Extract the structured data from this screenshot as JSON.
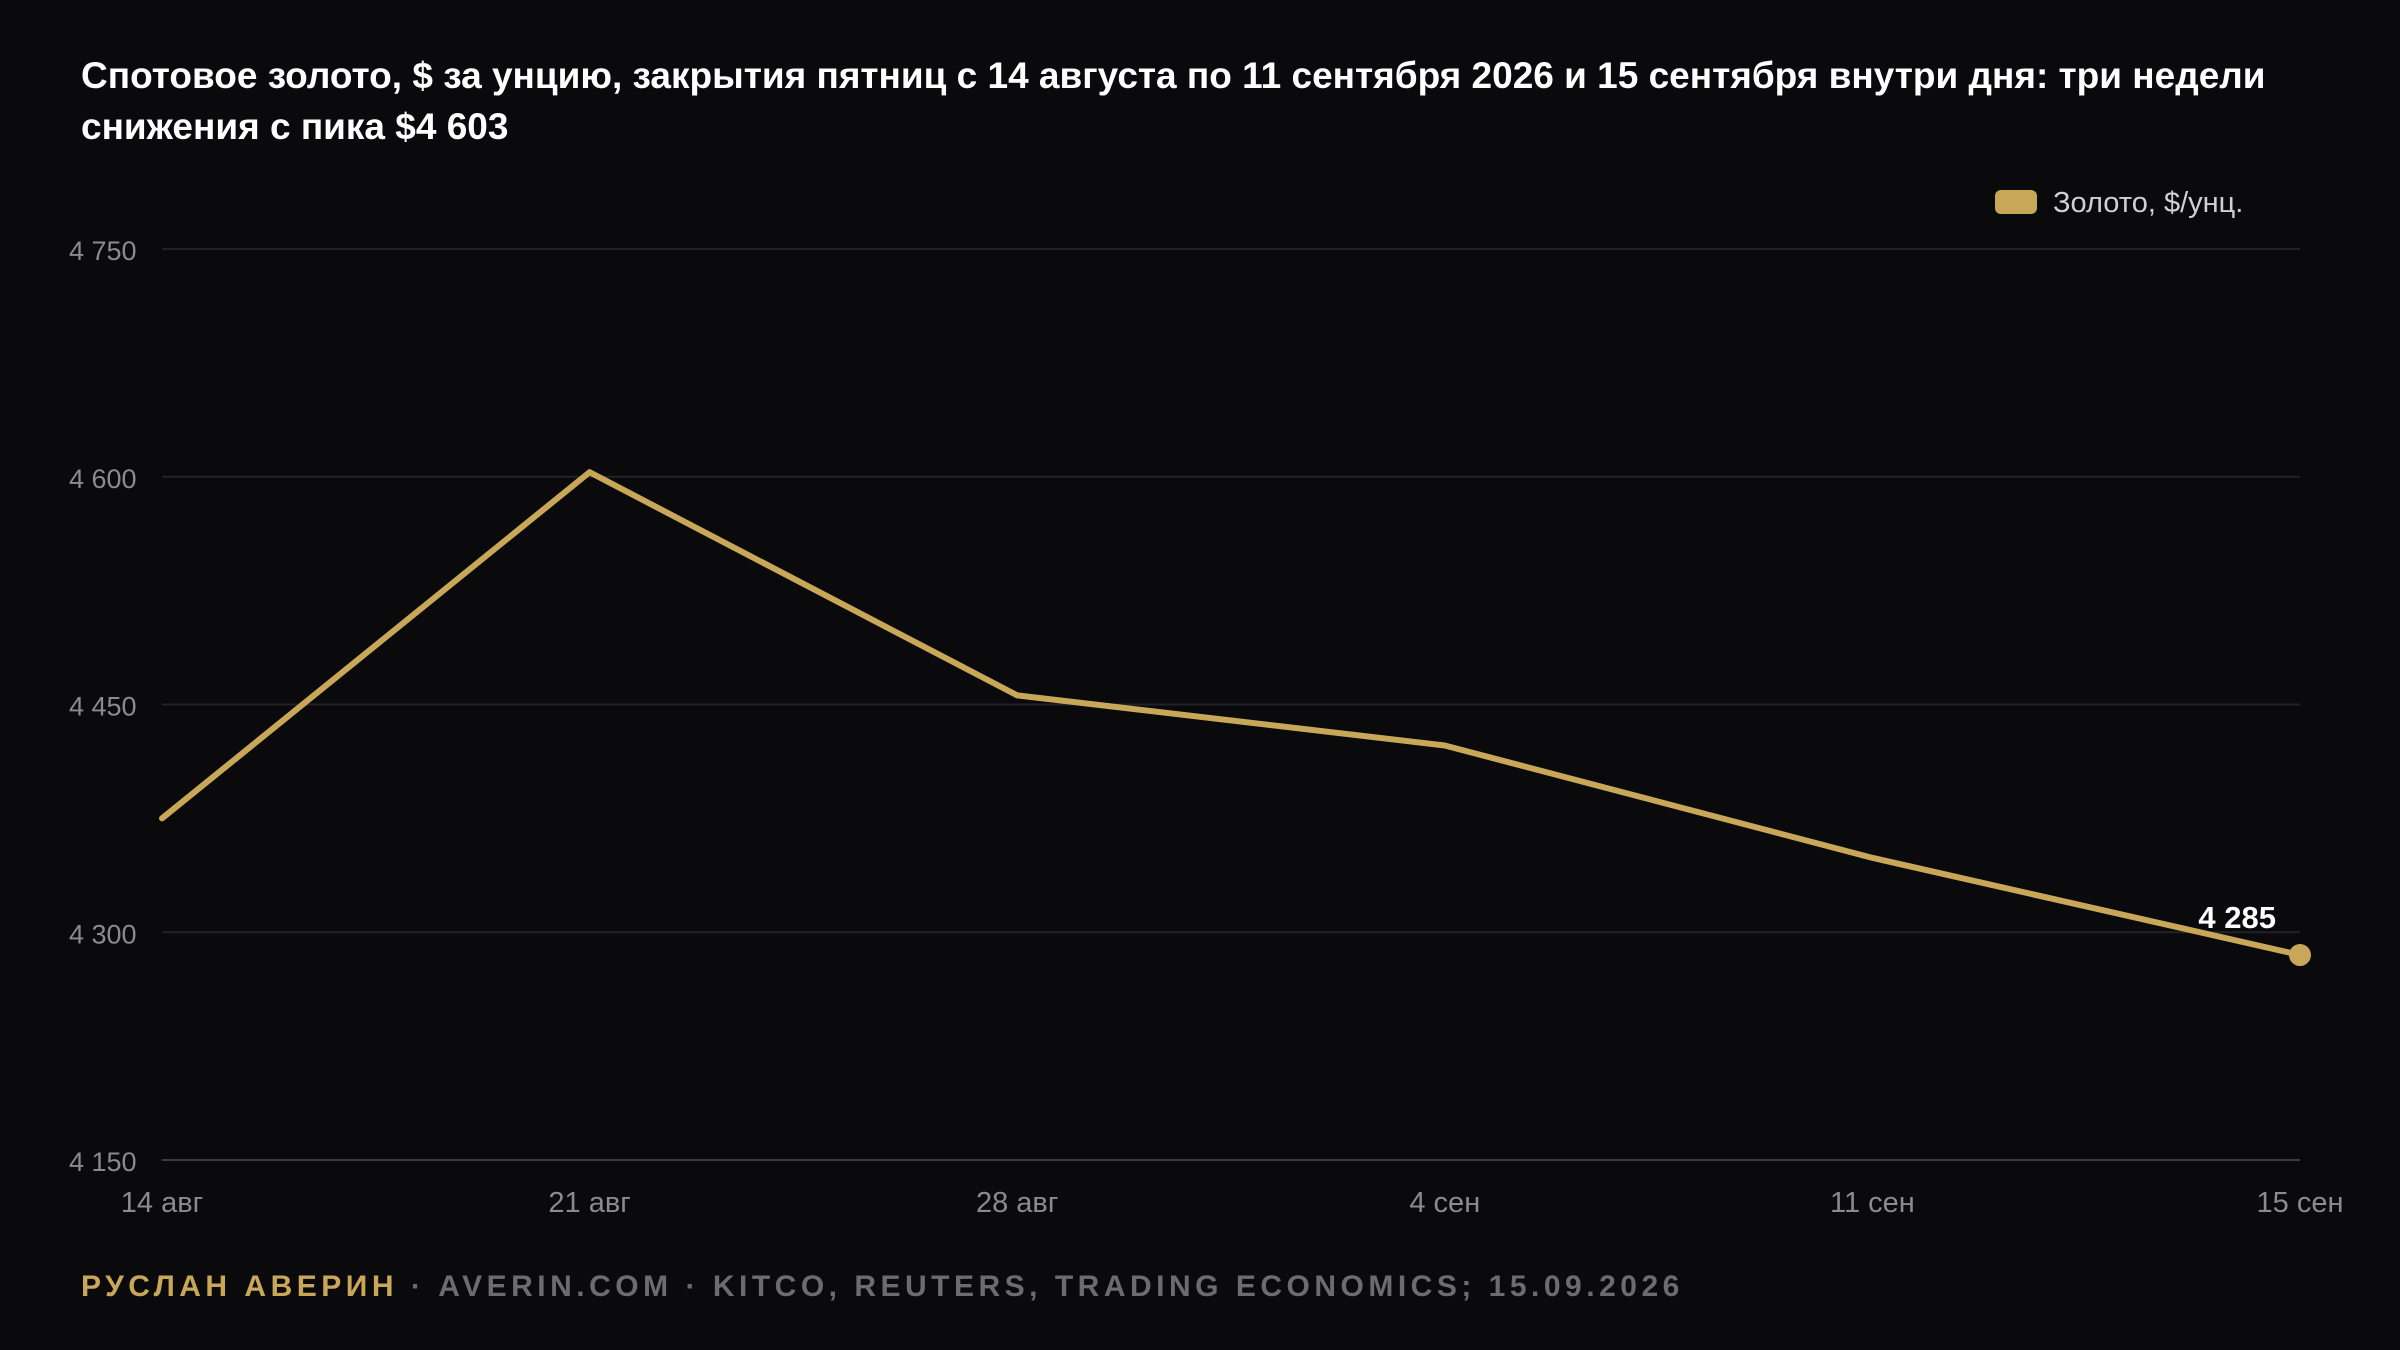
{
  "title": "Спотовое золото, $ за унцию, закрытия пятниц с 14 августа по 11 сентября 2026 и 15 сентября внутри дня: три недели снижения с пика $4 603",
  "footer": {
    "author": "РУСЛАН АВЕРИН",
    "separator": "·",
    "site": "AVERIN.COM",
    "sources": "KITCO, REUTERS, TRADING ECONOMICS; 15.09.2026"
  },
  "colors": {
    "background": "#0a0a0d",
    "series": "#c8a858",
    "grid": "#222226",
    "axis_text": "#8a8a8f",
    "label": "#ffffff"
  },
  "chart_data": {
    "type": "line",
    "title": "Спотовое золото, $ за унцию, закрытия пятниц с 14 августа по 11 сентября 2026 и 15 сентября внутри дня: три недели снижения с пика $4 603",
    "xlabel": "",
    "ylabel": "",
    "categories": [
      "14 авг",
      "21 авг",
      "28 авг",
      "4 сен",
      "11 сен",
      "15 сен"
    ],
    "series": [
      {
        "name": "Золото, $/унц.",
        "values": [
          4375,
          4603,
          4456,
          4423,
          4349,
          4285
        ],
        "color": "#c8a858"
      }
    ],
    "ylim": [
      4150,
      4750
    ],
    "yticks": [
      4150,
      4300,
      4450,
      4600,
      4750
    ],
    "ytick_labels": [
      "4 150",
      "4 300",
      "4 450",
      "4 600",
      "4 750"
    ],
    "grid": true,
    "legend": "top-right",
    "annotations": [
      {
        "index": 5,
        "text": "4 285"
      }
    ]
  }
}
